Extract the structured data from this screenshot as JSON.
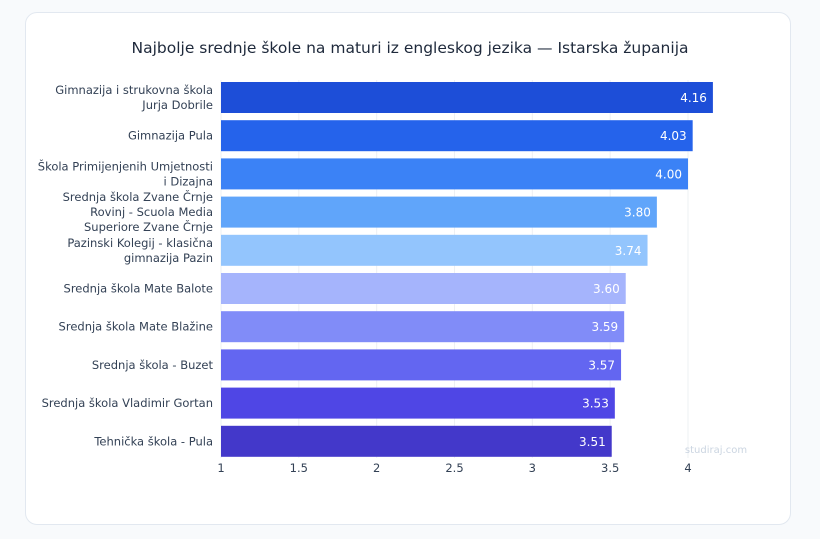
{
  "chart_data": {
    "type": "bar",
    "orientation": "horizontal",
    "title": "Najbolje srednje škole na maturi iz engleskog jezika — Istarska županija",
    "categories": [
      [
        "Gimnazija i strukovna škola",
        "Jurja Dobrile"
      ],
      [
        "Gimnazija Pula"
      ],
      [
        "Škola Primijenjenih Umjetnosti",
        "i Dizajna"
      ],
      [
        "Srednja škola Zvane Črnje",
        "Rovinj - Scuola Media",
        "Superiore Zvane Črnje"
      ],
      [
        "Pazinski Kolegij - klasična",
        "gimnazija Pazin"
      ],
      [
        "Srednja škola Mate Balote"
      ],
      [
        "Srednja škola Mate Blažine"
      ],
      [
        "Srednja škola - Buzet"
      ],
      [
        "Srednja škola Vladimir Gortan"
      ],
      [
        "Tehnička škola - Pula"
      ]
    ],
    "values": [
      4.16,
      4.03,
      4.0,
      3.8,
      3.74,
      3.6,
      3.59,
      3.57,
      3.53,
      3.51
    ],
    "value_labels": [
      "4.16",
      "4.03",
      "4.00",
      "3.80",
      "3.74",
      "3.60",
      "3.59",
      "3.57",
      "3.53",
      "3.51"
    ],
    "colors": [
      "#1d4ed8",
      "#2563eb",
      "#3b82f6",
      "#60a5fa",
      "#93c5fd",
      "#a5b4fc",
      "#818cf8",
      "#6366f1",
      "#4f46e5",
      "#4338ca"
    ],
    "xlim": [
      1,
      4.3
    ],
    "xticks": [
      "1",
      "1.5",
      "2",
      "2.5",
      "3",
      "3.5",
      "4"
    ],
    "xtick_values": [
      1,
      1.5,
      2,
      2.5,
      3,
      3.5,
      4
    ],
    "grid": true,
    "xlabel": "",
    "ylabel": ""
  },
  "watermark": "studiraj.com"
}
